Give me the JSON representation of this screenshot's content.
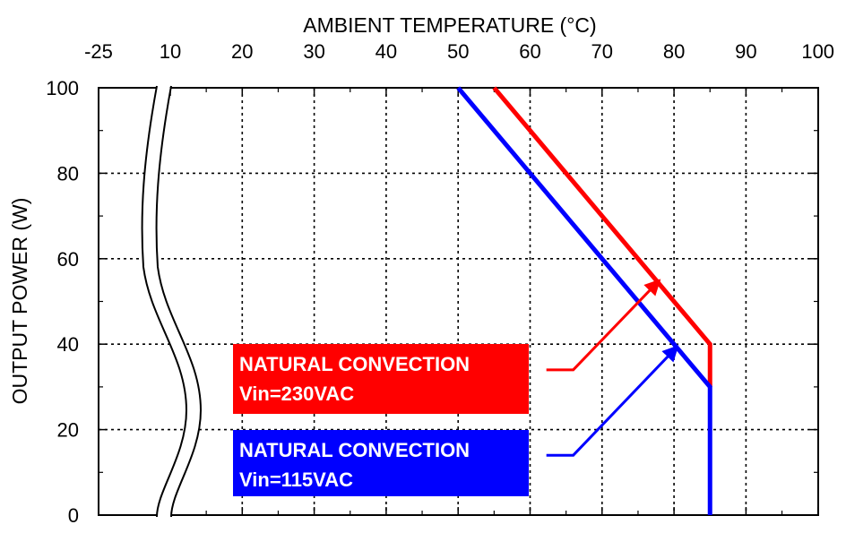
{
  "chart_data": {
    "type": "line",
    "xlabel": "AMBIENT TEMPERATURE (°C)",
    "ylabel": "OUTPUT POWER (W)",
    "xlim": [
      10,
      100
    ],
    "ylim": [
      0,
      100
    ],
    "x_axis_break": true,
    "x_ticks": [
      "-25",
      "10",
      "20",
      "30",
      "40",
      "50",
      "60",
      "70",
      "80",
      "90",
      "100"
    ],
    "y_ticks": [
      "100",
      "80",
      "60",
      "40",
      "20",
      "0"
    ],
    "grid": true,
    "colors": {
      "series_230": "#ff0000",
      "series_115": "#0000ff"
    },
    "series": [
      {
        "label_line1": "NATURAL CONVECTION",
        "label_line2": "Vin=230VAC",
        "color": "#ff0000",
        "points": [
          [
            55,
            100
          ],
          [
            85,
            40
          ],
          [
            85,
            30
          ]
        ]
      },
      {
        "label_line1": "NATURAL CONVECTION",
        "label_line2": "Vin=115VAC",
        "color": "#0000ff",
        "points": [
          [
            50,
            100
          ],
          [
            85,
            30
          ],
          [
            85,
            0
          ]
        ]
      }
    ],
    "annotations": [
      {
        "series": 0,
        "from": [
          66,
          34
        ],
        "to": [
          78,
          55
        ]
      },
      {
        "series": 1,
        "from": [
          66,
          14
        ],
        "to": [
          80.5,
          39.5
        ]
      }
    ]
  }
}
